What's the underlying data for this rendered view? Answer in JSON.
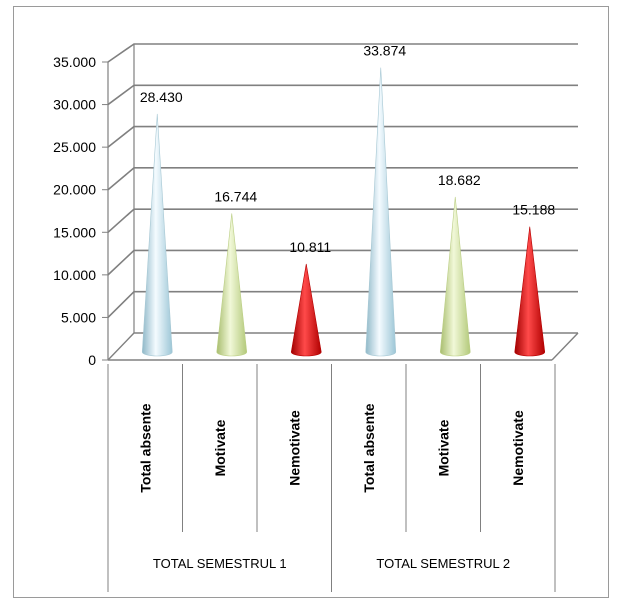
{
  "chart_data": {
    "type": "bar",
    "style": "3d-cone",
    "groups": [
      {
        "label": "TOTAL SEMESTRUL 1",
        "categories": [
          "Total absente",
          "Motivate",
          "Nemotivate"
        ],
        "values": [
          28430,
          16744,
          10811
        ],
        "value_labels": [
          "28.430",
          "16.744",
          "10.811"
        ]
      },
      {
        "label": "TOTAL SEMESTRUL 2",
        "categories": [
          "Total absente",
          "Motivate",
          "Nemotivate"
        ],
        "values": [
          33874,
          18682,
          15188
        ],
        "value_labels": [
          "33.874",
          "18.682",
          "15.188"
        ]
      }
    ],
    "colors": [
      "#b8e0ec",
      "#d4e6a4",
      "#e00000"
    ],
    "y_ticks": [
      0,
      5000,
      10000,
      15000,
      20000,
      25000,
      30000,
      35000
    ],
    "y_tick_labels": [
      "0",
      "5.000",
      "10.000",
      "15.000",
      "20.000",
      "25.000",
      "30.000",
      "35.000"
    ],
    "ylim": [
      0,
      35000
    ],
    "grid": true,
    "legend": "none",
    "title": "",
    "xlabel": "",
    "ylabel": ""
  }
}
